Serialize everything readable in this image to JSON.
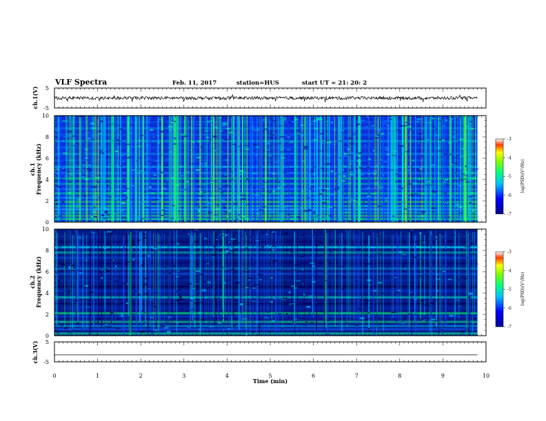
{
  "header": {
    "title": "VLF Spectra",
    "date": "Feb. 11, 2017",
    "station": "station=HUS",
    "start": "start  UT =   21: 20: 2"
  },
  "chart_data": [
    {
      "type": "line",
      "panel": "ch1-waveform",
      "ylabel": "ch.1(V)",
      "ylim": [
        -5,
        5
      ],
      "yticks": [
        "5",
        "-5"
      ],
      "xlim": [
        0,
        10
      ],
      "series": [
        {
          "x": [
            0,
            9.8
          ],
          "y": [
            0,
            0
          ]
        }
      ]
    },
    {
      "type": "heatmap",
      "panel": "ch1-spectrogram",
      "ylabel": "ch.1\nFrequency (kHz)",
      "ylim": [
        0,
        10
      ],
      "yticks": [
        "0",
        "2",
        "4",
        "6",
        "8",
        "10"
      ],
      "xlim": [
        0,
        10
      ],
      "data_extent_x": [
        0,
        9.8
      ],
      "colorbar": {
        "label": "log(PSD)(V²/Hz)",
        "ticks": [
          "-3",
          "-4",
          "-5",
          "-6",
          "-7"
        ],
        "range": [
          -7,
          -3
        ]
      }
    },
    {
      "type": "heatmap",
      "panel": "ch2-spectrogram",
      "ylabel": "ch.2\nFrequency (kHz)",
      "ylim": [
        0,
        10
      ],
      "yticks": [
        "0",
        "2",
        "4",
        "6",
        "8",
        "10"
      ],
      "xlim": [
        0,
        10
      ],
      "data_extent_x": [
        0,
        9.8
      ],
      "colorbar": {
        "label": "log(PSD)(V²/Hz)",
        "ticks": [
          "-3",
          "-4",
          "-5",
          "-6",
          "-7"
        ],
        "range": [
          -7,
          -3
        ]
      }
    },
    {
      "type": "line",
      "panel": "ch3-waveform",
      "ylabel": "ch.3(V)",
      "ylim": [
        -5,
        5
      ],
      "yticks": [
        "5",
        "-5"
      ],
      "xlim": [
        0,
        10
      ],
      "series": [
        {
          "x": [
            0,
            9.8
          ],
          "y": [
            -1.5,
            -1.5
          ]
        }
      ]
    }
  ],
  "xaxis": {
    "label": "Time (min)",
    "ticks": [
      "0",
      "1",
      "2",
      "3",
      "4",
      "5",
      "6",
      "7",
      "8",
      "9",
      "10"
    ]
  }
}
